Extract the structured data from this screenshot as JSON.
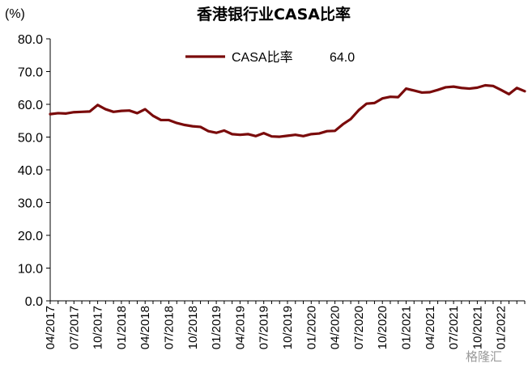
{
  "chart_data": {
    "type": "line",
    "title": "香港银行业CASA比率",
    "unit_label": "(%)",
    "ylim": [
      0,
      80
    ],
    "yticks": [
      "0.0",
      "10.0",
      "20.0",
      "30.0",
      "40.0",
      "50.0",
      "60.0",
      "70.0",
      "80.0"
    ],
    "xtick_labels": [
      "04/2017",
      "07/2017",
      "10/2017",
      "01/2018",
      "04/2018",
      "07/2018",
      "10/2018",
      "01/2019",
      "04/2019",
      "07/2019",
      "10/2019",
      "01/2020",
      "04/2020",
      "07/2020",
      "10/2020",
      "01/2021",
      "04/2021",
      "07/2021",
      "10/2021",
      "01/2022"
    ],
    "x": [
      "04/2017",
      "05/2017",
      "06/2017",
      "07/2017",
      "08/2017",
      "09/2017",
      "10/2017",
      "11/2017",
      "12/2017",
      "01/2018",
      "02/2018",
      "03/2018",
      "04/2018",
      "05/2018",
      "06/2018",
      "07/2018",
      "08/2018",
      "09/2018",
      "10/2018",
      "11/2018",
      "12/2018",
      "01/2019",
      "02/2019",
      "03/2019",
      "04/2019",
      "05/2019",
      "06/2019",
      "07/2019",
      "08/2019",
      "09/2019",
      "10/2019",
      "11/2019",
      "12/2019",
      "01/2020",
      "02/2020",
      "03/2020",
      "04/2020",
      "05/2020",
      "06/2020",
      "07/2020",
      "08/2020",
      "09/2020",
      "10/2020",
      "11/2020",
      "12/2020",
      "01/2021",
      "02/2021",
      "03/2021",
      "04/2021",
      "05/2021",
      "06/2021",
      "07/2021",
      "08/2021",
      "09/2021",
      "10/2021",
      "11/2021",
      "12/2021",
      "01/2022",
      "02/2022",
      "03/2022",
      "04/2022"
    ],
    "series": [
      {
        "name": "CASA比率",
        "color": "#7a0b0b",
        "values": [
          57.0,
          57.3,
          57.2,
          57.6,
          57.7,
          57.8,
          59.8,
          58.5,
          57.7,
          58.0,
          58.1,
          57.3,
          58.5,
          56.5,
          55.2,
          55.2,
          54.3,
          53.7,
          53.3,
          53.1,
          51.8,
          51.3,
          52.0,
          50.9,
          50.7,
          50.9,
          50.3,
          51.2,
          50.2,
          50.1,
          50.4,
          50.7,
          50.3,
          50.9,
          51.1,
          51.8,
          51.9,
          53.9,
          55.5,
          58.2,
          60.2,
          60.4,
          61.8,
          62.3,
          62.2,
          64.8,
          64.2,
          63.6,
          63.7,
          64.4,
          65.2,
          65.4,
          65.0,
          64.8,
          65.1,
          65.8,
          65.6,
          64.4,
          63.1,
          65.0,
          64.0
        ]
      }
    ],
    "legend": {
      "position": "top-center",
      "label": "CASA比率",
      "value_text": "64.0"
    },
    "grid": false
  },
  "watermark": {
    "text": "格隆汇"
  }
}
